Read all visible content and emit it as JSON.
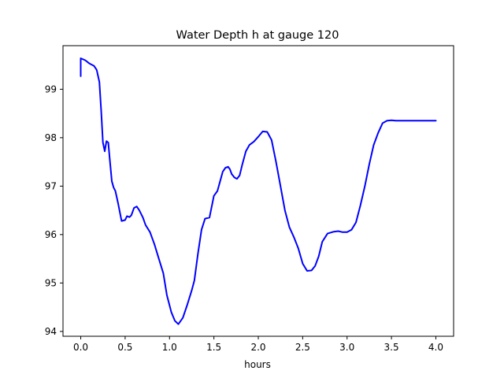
{
  "chart_data": {
    "type": "line",
    "title": "Water Depth h at gauge 120",
    "xlabel": "hours",
    "ylabel": "",
    "xlim": [
      -0.2,
      4.2
    ],
    "ylim": [
      93.9,
      99.9
    ],
    "grid": false,
    "legend": "none",
    "line_color": "#0000ff",
    "x_ticks": [
      {
        "value": 0.0,
        "label": "0.0"
      },
      {
        "value": 0.5,
        "label": "0.5"
      },
      {
        "value": 1.0,
        "label": "1.0"
      },
      {
        "value": 1.5,
        "label": "1.5"
      },
      {
        "value": 2.0,
        "label": "2.0"
      },
      {
        "value": 2.5,
        "label": "2.5"
      },
      {
        "value": 3.0,
        "label": "3.0"
      },
      {
        "value": 3.5,
        "label": "3.5"
      },
      {
        "value": 4.0,
        "label": "4.0"
      }
    ],
    "y_ticks": [
      {
        "value": 94,
        "label": "94"
      },
      {
        "value": 95,
        "label": "95"
      },
      {
        "value": 96,
        "label": "96"
      },
      {
        "value": 97,
        "label": "97"
      },
      {
        "value": 98,
        "label": "98"
      },
      {
        "value": 99,
        "label": "99"
      }
    ],
    "series": [
      {
        "x": [
          0.0,
          0.0,
          0.05,
          0.1,
          0.15,
          0.18,
          0.21,
          0.23,
          0.25,
          0.27,
          0.29,
          0.31,
          0.33,
          0.35,
          0.37,
          0.39,
          0.42,
          0.46,
          0.5,
          0.52,
          0.55,
          0.57,
          0.6,
          0.63,
          0.66,
          0.7,
          0.73,
          0.78,
          0.83,
          0.88,
          0.93,
          0.97,
          1.02,
          1.06,
          1.1,
          1.15,
          1.2,
          1.25,
          1.28,
          1.32,
          1.36,
          1.4,
          1.45,
          1.5,
          1.54,
          1.57,
          1.6,
          1.63,
          1.66,
          1.68,
          1.7,
          1.73,
          1.76,
          1.79,
          1.82,
          1.86,
          1.9,
          1.95,
          2.0,
          2.05,
          2.1,
          2.15,
          2.2,
          2.25,
          2.3,
          2.35,
          2.4,
          2.45,
          2.5,
          2.55,
          2.6,
          2.64,
          2.68,
          2.72,
          2.78,
          2.85,
          2.9,
          2.95,
          3.0,
          3.05,
          3.1,
          3.15,
          3.2,
          3.25,
          3.3,
          3.35,
          3.4,
          3.45,
          3.5,
          3.55,
          3.6,
          3.65,
          3.7,
          3.75,
          3.8,
          3.85,
          3.9,
          3.95,
          4.0
        ],
        "y": [
          99.27,
          99.64,
          99.6,
          99.53,
          99.48,
          99.4,
          99.15,
          98.55,
          97.9,
          97.72,
          97.93,
          97.9,
          97.5,
          97.1,
          96.97,
          96.9,
          96.65,
          96.28,
          96.3,
          96.38,
          96.36,
          96.4,
          96.55,
          96.58,
          96.5,
          96.35,
          96.2,
          96.05,
          95.8,
          95.5,
          95.2,
          94.75,
          94.4,
          94.22,
          94.15,
          94.28,
          94.55,
          94.85,
          95.05,
          95.6,
          96.1,
          96.33,
          96.35,
          96.8,
          96.9,
          97.1,
          97.3,
          97.38,
          97.4,
          97.35,
          97.25,
          97.18,
          97.15,
          97.22,
          97.45,
          97.72,
          97.85,
          97.92,
          98.02,
          98.13,
          98.12,
          97.95,
          97.5,
          97.0,
          96.5,
          96.15,
          95.95,
          95.72,
          95.4,
          95.25,
          95.26,
          95.35,
          95.55,
          95.85,
          96.02,
          96.06,
          96.07,
          96.05,
          96.05,
          96.1,
          96.25,
          96.6,
          97.0,
          97.45,
          97.85,
          98.1,
          98.3,
          98.35,
          98.36,
          98.35,
          98.35,
          98.35,
          98.35,
          98.35,
          98.35,
          98.35,
          98.35,
          98.35,
          98.35
        ]
      }
    ]
  }
}
